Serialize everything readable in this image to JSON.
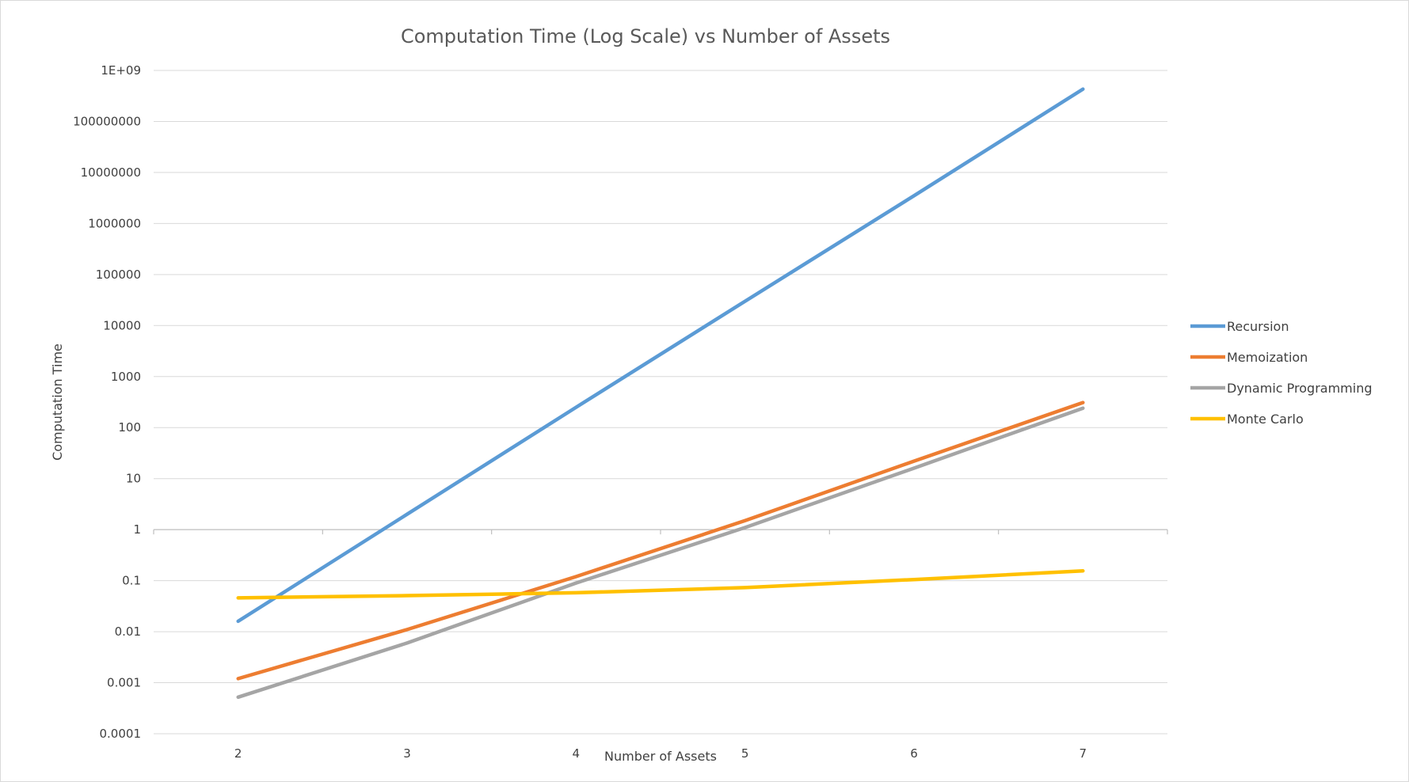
{
  "chart_data": {
    "type": "line",
    "title": "Computation Time  (Log Scale) vs Number of Assets",
    "xlabel": "Number of Assets",
    "ylabel": "Computation Time",
    "y_scale": "log",
    "ylim": [
      0.0001,
      1000000000
    ],
    "y_tick_labels": [
      "0.0001",
      "0.001",
      "0.01",
      "0.1",
      "1",
      "10",
      "100",
      "1000",
      "10000",
      "100000",
      "1000000",
      "10000000",
      "100000000",
      "1E+09"
    ],
    "categories": [
      "2",
      "3",
      "4",
      "5",
      "6",
      "7"
    ],
    "grid": true,
    "legend_position": "right",
    "series": [
      {
        "name": "Recursion",
        "color": "#5B9BD5",
        "values": [
          0.016,
          2.0,
          250,
          30000,
          3500000,
          430000000
        ]
      },
      {
        "name": "Memoization",
        "color": "#ED7D31",
        "values": [
          0.0012,
          0.011,
          0.12,
          1.5,
          22,
          310
        ]
      },
      {
        "name": "Dynamic Programming",
        "color": "#A5A5A5",
        "values": [
          0.00052,
          0.006,
          0.09,
          1.1,
          16,
          240
        ]
      },
      {
        "name": "Monte Carlo",
        "color": "#FFC000",
        "values": [
          0.046,
          0.051,
          0.058,
          0.073,
          0.105,
          0.155
        ]
      }
    ]
  }
}
